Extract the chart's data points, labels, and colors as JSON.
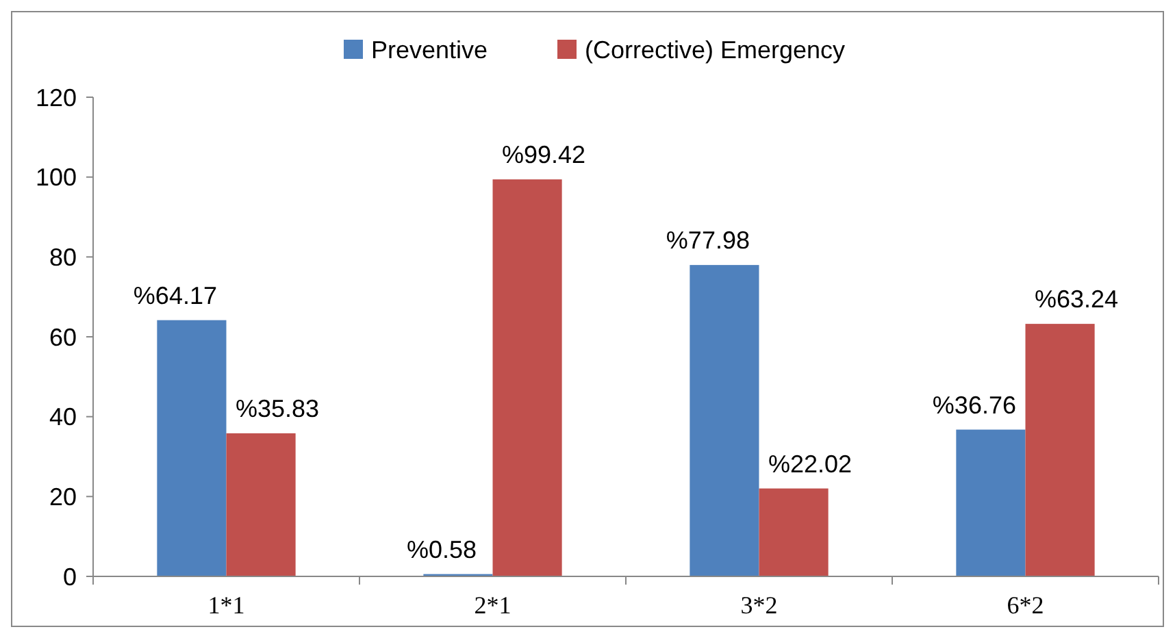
{
  "chart_data": {
    "type": "bar",
    "categories": [
      "1*1",
      "2*1",
      "3*2",
      "6*2"
    ],
    "series": [
      {
        "name": "Preventive",
        "color": "#4f81bd",
        "values": [
          64.17,
          0.58,
          77.98,
          36.76
        ],
        "value_labels": [
          "%64.17",
          "%0.58",
          "%77.98",
          "%36.76"
        ]
      },
      {
        "name": "(Corrective) Emergency",
        "color": "#c0504d",
        "values": [
          35.83,
          99.42,
          22.02,
          63.24
        ],
        "value_labels": [
          "%35.83",
          "%99.42",
          "%22.02",
          "%63.24"
        ]
      }
    ],
    "ylim": [
      0,
      120
    ],
    "yticks": [
      0,
      20,
      40,
      60,
      80,
      100,
      120
    ],
    "grid": false,
    "legend": "top"
  }
}
